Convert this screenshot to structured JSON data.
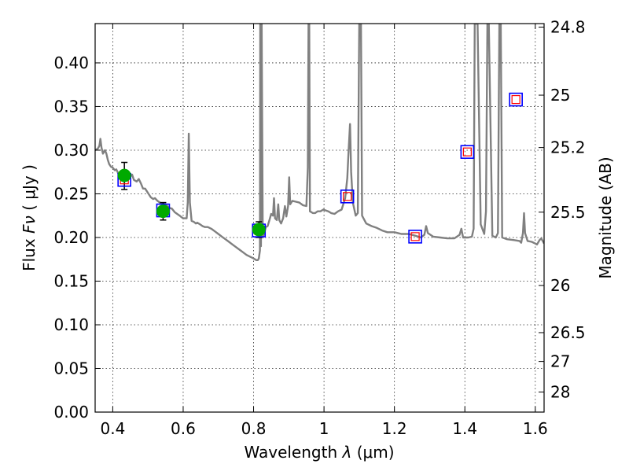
{
  "chart_data": {
    "type": "line",
    "xlabel_text": "Wavelength",
    "xlabel_symbol": "λ",
    "xlabel_unit": "(μm)",
    "ylabel_text": "Flux",
    "ylabel_symbol": "Fν",
    "ylabel_unit": "( μJy )",
    "y2label": "Magnitude (AB)",
    "xlim": [
      0.35,
      1.625
    ],
    "ylim": [
      0.0,
      0.445
    ],
    "xticks": [
      0.4,
      0.6,
      0.8,
      1.0,
      1.2,
      1.4,
      1.6
    ],
    "xtick_labels": [
      "0.4",
      "0.6",
      "0.8",
      "1",
      "1.2",
      "1.4",
      "1.6"
    ],
    "yticks": [
      0.0,
      0.05,
      0.1,
      0.15,
      0.2,
      0.25,
      0.3,
      0.35,
      0.4
    ],
    "ytick_labels": [
      "0.00",
      "0.05",
      "0.10",
      "0.15",
      "0.20",
      "0.25",
      "0.30",
      "0.35",
      "0.40"
    ],
    "y2ticks": [
      {
        "label": "24.8",
        "flux": 0.441
      },
      {
        "label": "25",
        "flux": 0.363
      },
      {
        "label": "25.2",
        "flux": 0.303
      },
      {
        "label": "25.5",
        "flux": 0.229
      },
      {
        "label": "26",
        "flux": 0.145
      },
      {
        "label": "26.5",
        "flux": 0.091
      },
      {
        "label": "27",
        "flux": 0.058
      },
      {
        "label": "28",
        "flux": 0.023
      }
    ],
    "grid": true,
    "colors": {
      "spectrum": "#808080",
      "model_box": "#0000ff",
      "model_inner": "#ff0000",
      "observed_point": "#00aa00",
      "error_bar": "#000000"
    },
    "spectrum": [
      [
        0.35,
        0.3
      ],
      [
        0.358,
        0.302
      ],
      [
        0.362,
        0.305
      ],
      [
        0.365,
        0.313
      ],
      [
        0.368,
        0.303
      ],
      [
        0.372,
        0.296
      ],
      [
        0.378,
        0.3
      ],
      [
        0.382,
        0.296
      ],
      [
        0.386,
        0.289
      ],
      [
        0.39,
        0.284
      ],
      [
        0.395,
        0.281
      ],
      [
        0.4,
        0.28
      ],
      [
        0.406,
        0.277
      ],
      [
        0.41,
        0.278
      ],
      [
        0.415,
        0.274
      ],
      [
        0.42,
        0.273
      ],
      [
        0.425,
        0.276
      ],
      [
        0.43,
        0.272
      ],
      [
        0.44,
        0.273
      ],
      [
        0.45,
        0.27
      ],
      [
        0.455,
        0.272
      ],
      [
        0.46,
        0.266
      ],
      [
        0.468,
        0.264
      ],
      [
        0.474,
        0.267
      ],
      [
        0.48,
        0.262
      ],
      [
        0.486,
        0.256
      ],
      [
        0.492,
        0.256
      ],
      [
        0.5,
        0.251
      ],
      [
        0.508,
        0.246
      ],
      [
        0.515,
        0.244
      ],
      [
        0.52,
        0.245
      ],
      [
        0.527,
        0.242
      ],
      [
        0.534,
        0.24
      ],
      [
        0.54,
        0.239
      ],
      [
        0.55,
        0.238
      ],
      [
        0.56,
        0.234
      ],
      [
        0.568,
        0.233
      ],
      [
        0.576,
        0.229
      ],
      [
        0.583,
        0.227
      ],
      [
        0.59,
        0.225
      ],
      [
        0.596,
        0.223
      ],
      [
        0.6,
        0.222
      ],
      [
        0.605,
        0.222
      ],
      [
        0.61,
        0.222
      ],
      [
        0.613,
        0.24
      ],
      [
        0.616,
        0.319
      ],
      [
        0.619,
        0.24
      ],
      [
        0.624,
        0.219
      ],
      [
        0.63,
        0.218
      ],
      [
        0.636,
        0.216
      ],
      [
        0.64,
        0.217
      ],
      [
        0.648,
        0.215
      ],
      [
        0.655,
        0.213
      ],
      [
        0.662,
        0.212
      ],
      [
        0.67,
        0.212
      ],
      [
        0.68,
        0.21
      ],
      [
        0.69,
        0.207
      ],
      [
        0.7,
        0.204
      ],
      [
        0.71,
        0.201
      ],
      [
        0.72,
        0.198
      ],
      [
        0.73,
        0.195
      ],
      [
        0.74,
        0.192
      ],
      [
        0.75,
        0.189
      ],
      [
        0.76,
        0.186
      ],
      [
        0.77,
        0.183
      ],
      [
        0.78,
        0.18
      ],
      [
        0.79,
        0.178
      ],
      [
        0.8,
        0.176
      ],
      [
        0.808,
        0.174
      ],
      [
        0.812,
        0.174
      ],
      [
        0.815,
        0.176
      ],
      [
        0.818,
        0.185
      ],
      [
        0.819,
        0.445
      ],
      [
        0.821,
        0.19
      ],
      [
        0.823,
        0.445
      ],
      [
        0.826,
        0.2
      ],
      [
        0.83,
        0.205
      ],
      [
        0.835,
        0.212
      ],
      [
        0.84,
        0.213
      ],
      [
        0.845,
        0.22
      ],
      [
        0.85,
        0.227
      ],
      [
        0.855,
        0.225
      ],
      [
        0.858,
        0.245
      ],
      [
        0.861,
        0.222
      ],
      [
        0.866,
        0.22
      ],
      [
        0.87,
        0.238
      ],
      [
        0.873,
        0.22
      ],
      [
        0.878,
        0.216
      ],
      [
        0.884,
        0.222
      ],
      [
        0.889,
        0.236
      ],
      [
        0.893,
        0.224
      ],
      [
        0.898,
        0.236
      ],
      [
        0.901,
        0.269
      ],
      [
        0.904,
        0.238
      ],
      [
        0.91,
        0.242
      ],
      [
        0.92,
        0.241
      ],
      [
        0.93,
        0.24
      ],
      [
        0.94,
        0.237
      ],
      [
        0.95,
        0.236
      ],
      [
        0.954,
        0.28
      ],
      [
        0.956,
        0.445
      ],
      [
        0.958,
        0.445
      ],
      [
        0.96,
        0.23
      ],
      [
        0.968,
        0.228
      ],
      [
        0.975,
        0.228
      ],
      [
        0.982,
        0.23
      ],
      [
        0.99,
        0.23
      ],
      [
        0.998,
        0.232
      ],
      [
        1.005,
        0.231
      ],
      [
        1.012,
        0.23
      ],
      [
        1.02,
        0.228
      ],
      [
        1.03,
        0.227
      ],
      [
        1.04,
        0.23
      ],
      [
        1.05,
        0.232
      ],
      [
        1.06,
        0.245
      ],
      [
        1.066,
        0.268
      ],
      [
        1.07,
        0.3
      ],
      [
        1.074,
        0.33
      ],
      [
        1.077,
        0.275
      ],
      [
        1.082,
        0.24
      ],
      [
        1.09,
        0.225
      ],
      [
        1.096,
        0.228
      ],
      [
        1.1,
        0.445
      ],
      [
        1.105,
        0.445
      ],
      [
        1.108,
        0.225
      ],
      [
        1.12,
        0.216
      ],
      [
        1.135,
        0.213
      ],
      [
        1.15,
        0.211
      ],
      [
        1.165,
        0.208
      ],
      [
        1.18,
        0.206
      ],
      [
        1.2,
        0.206
      ],
      [
        1.22,
        0.204
      ],
      [
        1.24,
        0.204
      ],
      [
        1.26,
        0.202
      ],
      [
        1.275,
        0.2
      ],
      [
        1.285,
        0.203
      ],
      [
        1.29,
        0.213
      ],
      [
        1.295,
        0.205
      ],
      [
        1.31,
        0.201
      ],
      [
        1.33,
        0.2
      ],
      [
        1.35,
        0.199
      ],
      [
        1.37,
        0.199
      ],
      [
        1.385,
        0.203
      ],
      [
        1.39,
        0.21
      ],
      [
        1.395,
        0.2
      ],
      [
        1.41,
        0.2
      ],
      [
        1.42,
        0.201
      ],
      [
        1.425,
        0.21
      ],
      [
        1.428,
        0.445
      ],
      [
        1.436,
        0.445
      ],
      [
        1.445,
        0.215
      ],
      [
        1.455,
        0.204
      ],
      [
        1.46,
        0.23
      ],
      [
        1.464,
        0.445
      ],
      [
        1.468,
        0.445
      ],
      [
        1.478,
        0.202
      ],
      [
        1.488,
        0.2
      ],
      [
        1.494,
        0.205
      ],
      [
        1.498,
        0.445
      ],
      [
        1.502,
        0.445
      ],
      [
        1.506,
        0.2
      ],
      [
        1.52,
        0.198
      ],
      [
        1.54,
        0.197
      ],
      [
        1.555,
        0.196
      ],
      [
        1.56,
        0.194
      ],
      [
        1.565,
        0.205
      ],
      [
        1.568,
        0.228
      ],
      [
        1.571,
        0.205
      ],
      [
        1.578,
        0.196
      ],
      [
        1.59,
        0.195
      ],
      [
        1.6,
        0.193
      ],
      [
        1.605,
        0.192
      ],
      [
        1.612,
        0.197
      ],
      [
        1.617,
        0.199
      ],
      [
        1.625,
        0.193
      ]
    ],
    "model_points": [
      {
        "x": 0.433,
        "y": 0.266
      },
      {
        "x": 0.543,
        "y": 0.231
      },
      {
        "x": 0.815,
        "y": 0.208
      },
      {
        "x": 1.066,
        "y": 0.247
      },
      {
        "x": 1.259,
        "y": 0.201
      },
      {
        "x": 1.407,
        "y": 0.298
      },
      {
        "x": 1.545,
        "y": 0.358
      }
    ],
    "observed_points": [
      {
        "x": 0.433,
        "y": 0.271,
        "yerr_low": 0.255,
        "yerr_high": 0.286
      },
      {
        "x": 0.543,
        "y": 0.23,
        "yerr_low": 0.22,
        "yerr_high": 0.24
      },
      {
        "x": 0.815,
        "y": 0.209,
        "yerr_low": 0.2,
        "yerr_high": 0.218
      }
    ]
  }
}
